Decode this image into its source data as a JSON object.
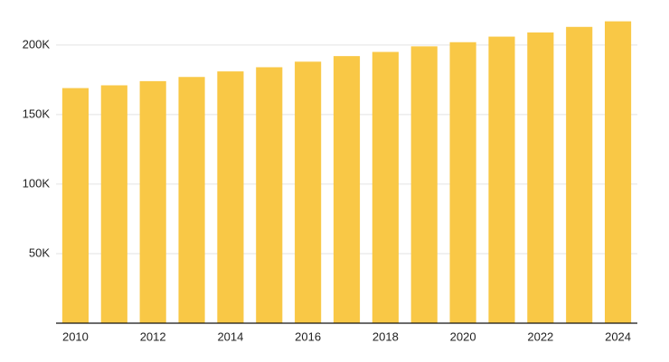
{
  "chart_data": {
    "type": "bar",
    "categories": [
      "2010",
      null,
      "2012",
      null,
      "2014",
      null,
      "2016",
      null,
      "2018",
      null,
      "2020",
      null,
      "2022",
      null,
      "2024"
    ],
    "values": [
      169000,
      171000,
      174000,
      177000,
      181000,
      184000,
      188000,
      192000,
      195000,
      199000,
      202000,
      206000,
      209000,
      213000,
      217000
    ],
    "color": "#f9c846",
    "ylim": [
      0,
      220000
    ],
    "yticks": [
      {
        "value": 50000,
        "label": "50K"
      },
      {
        "value": 100000,
        "label": "100K"
      },
      {
        "value": 150000,
        "label": "150K"
      },
      {
        "value": 200000,
        "label": "200K"
      }
    ],
    "grid": true
  }
}
